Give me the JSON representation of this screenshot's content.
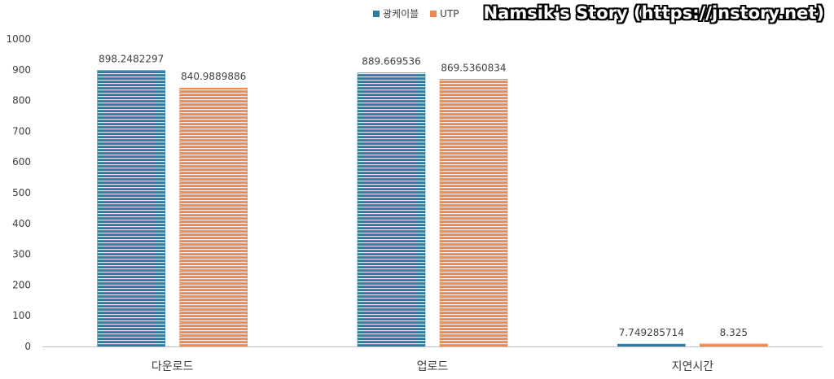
{
  "watermark": "Namsik's Story (https://jnstory.net)",
  "colors": {
    "series1": "#2e7aa3",
    "series2": "#ef8a4c",
    "axis": "#bfbfbf"
  },
  "chart_data": {
    "type": "bar",
    "categories": [
      "다운로드",
      "업로드",
      "지연시간"
    ],
    "series": [
      {
        "name": "광케이블",
        "values": [
          898.2482297,
          889.669536,
          7.749285714
        ],
        "labels": [
          "898.2482297",
          "889.669536",
          "7.749285714"
        ]
      },
      {
        "name": "UTP",
        "values": [
          840.9889886,
          869.5360834,
          8.325
        ],
        "labels": [
          "840.9889886",
          "869.5360834",
          "8.325"
        ]
      }
    ],
    "yticks": [
      "0",
      "100",
      "200",
      "300",
      "400",
      "500",
      "600",
      "700",
      "800",
      "900",
      "1000"
    ],
    "ylim": [
      0,
      1000
    ],
    "grid": false,
    "legend_position": "top-center"
  }
}
